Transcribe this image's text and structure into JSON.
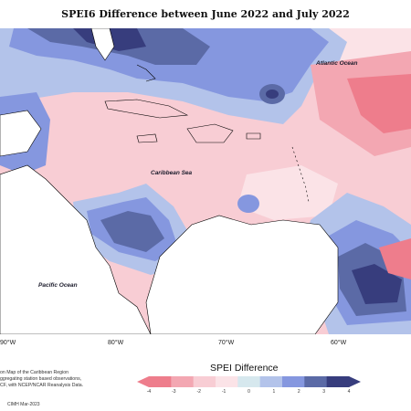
{
  "title": "SPEI6 Difference between June 2022 and July 2022",
  "ocean_labels": {
    "atlantic": "Atlantic Ocean",
    "caribbean": "Caribbean Sea",
    "pacific": "Pacific Ocean"
  },
  "longitude_labels": [
    "90°W",
    "80°W",
    "70°W",
    "60°W"
  ],
  "credit_lines": [
    "on Map of the Caribbean Region",
    "ggregating station based observations,",
    "CF, with NCEP/NCAR Reanalysis Data."
  ],
  "stamp": "CIMH Mar-2023",
  "legend": {
    "title": "SPEI Difference",
    "ticks": [
      "-4",
      "-3",
      "-2",
      "-1",
      "0",
      "1",
      "2",
      "3",
      "4"
    ],
    "colors": [
      "#ee7d8c",
      "#f3a7b2",
      "#f8cdd4",
      "#fbe3e7",
      "#d6e8ee",
      "#b3c3ea",
      "#8597df",
      "#5b6aa6",
      "#373d7d"
    ]
  },
  "colors": {
    "land_fill": "#ffffff",
    "coastline": "#000000"
  }
}
